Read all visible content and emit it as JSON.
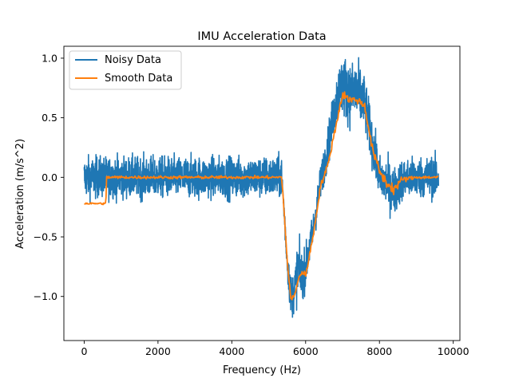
{
  "chart_data": {
    "type": "line",
    "title": "IMU Acceleration Data",
    "xlabel": "Frequency (Hz)",
    "ylabel": "Acceleration (m/s^2)",
    "xlim": [
      -550,
      10180
    ],
    "ylim": [
      -1.37,
      1.1
    ],
    "xticks": [
      0,
      2000,
      4000,
      6000,
      8000,
      10000
    ],
    "xtick_labels": [
      "0",
      "2000",
      "4000",
      "6000",
      "8000",
      "10000"
    ],
    "yticks": [
      -1.0,
      -0.5,
      0.0,
      0.5,
      1.0
    ],
    "ytick_labels": [
      "−1.0",
      "−0.5",
      "0.0",
      "0.5",
      "1.0"
    ],
    "grid": false,
    "legend_position": "top-left",
    "series": [
      {
        "name": "Noisy Data",
        "color": "#1f77b4",
        "x": [
          0,
          600,
          5350,
          5400,
          5500,
          5600,
          5700,
          5800,
          5900,
          6000,
          6200,
          6400,
          6600,
          6800,
          6900,
          7000,
          7200,
          7400,
          7600,
          7800,
          8000,
          8200,
          8400,
          8600,
          9000,
          9600
        ],
        "y_center": [
          0.0,
          0.0,
          0.0,
          -0.2,
          -0.7,
          -1.0,
          -0.95,
          -0.75,
          -0.85,
          -0.75,
          -0.45,
          -0.05,
          0.25,
          0.6,
          0.72,
          0.78,
          0.7,
          0.72,
          0.62,
          0.3,
          0.0,
          -0.05,
          -0.12,
          -0.02,
          0.0,
          0.0
        ],
        "y_noise": [
          0.12,
          0.12,
          0.12,
          0.08,
          0.1,
          0.12,
          0.14,
          0.16,
          0.14,
          0.12,
          0.1,
          0.1,
          0.12,
          0.14,
          0.16,
          0.18,
          0.18,
          0.18,
          0.16,
          0.14,
          0.12,
          0.14,
          0.14,
          0.12,
          0.12,
          0.12
        ]
      },
      {
        "name": "Smooth Data",
        "color": "#ff7f0e",
        "x": [
          0,
          590,
          600,
          5350,
          5400,
          5500,
          5600,
          5700,
          5800,
          5900,
          6000,
          6200,
          6400,
          6600,
          6800,
          6900,
          7000,
          7200,
          7400,
          7600,
          7800,
          8000,
          8200,
          8400,
          8600,
          9000,
          9600
        ],
        "y_center": [
          -0.22,
          -0.22,
          0.0,
          0.0,
          -0.2,
          -0.7,
          -1.02,
          -1.0,
          -0.85,
          -0.8,
          -0.82,
          -0.5,
          -0.08,
          0.1,
          0.4,
          0.55,
          0.7,
          0.65,
          0.65,
          0.6,
          0.25,
          0.05,
          -0.05,
          -0.1,
          -0.02,
          0.0,
          0.0
        ],
        "y_noise": [
          0.01,
          0.01,
          0.015,
          0.015,
          0.02,
          0.02,
          0.02,
          0.03,
          0.03,
          0.03,
          0.03,
          0.03,
          0.03,
          0.03,
          0.03,
          0.04,
          0.04,
          0.04,
          0.04,
          0.04,
          0.04,
          0.05,
          0.06,
          0.06,
          0.03,
          0.015,
          0.015
        ]
      }
    ]
  }
}
